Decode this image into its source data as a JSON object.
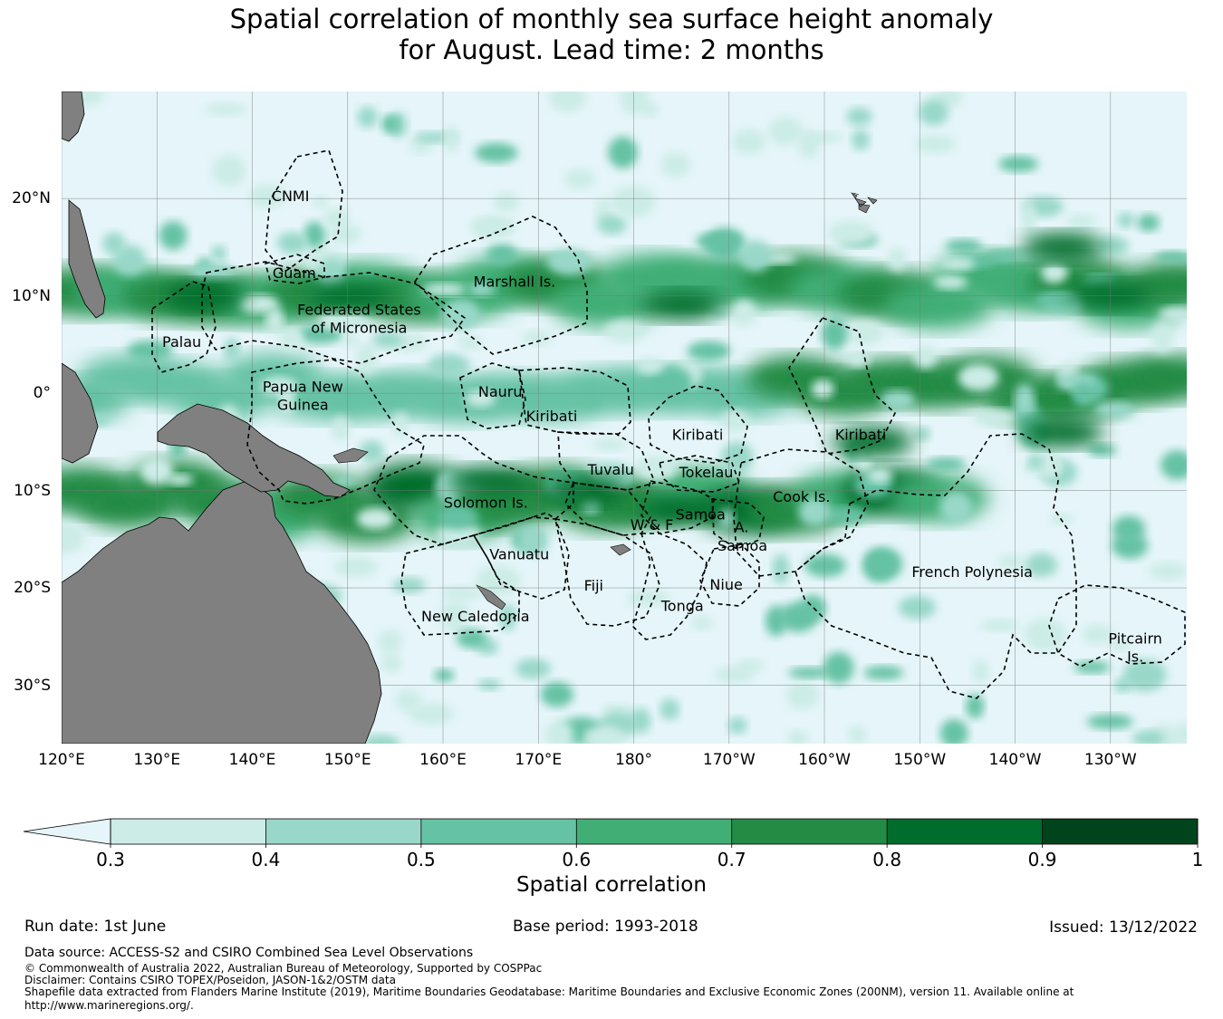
{
  "title": {
    "line1": "Spatial correlation of monthly sea surface height anomaly",
    "line2": "for August. Lead time: 2 months"
  },
  "map": {
    "extent": {
      "lon_min": 120,
      "lon_max": 238,
      "lat_min": -36,
      "lat_max": 31
    },
    "longitude_labels": [
      {
        "lon": 120,
        "text": "120°E"
      },
      {
        "lon": 130,
        "text": "130°E"
      },
      {
        "lon": 140,
        "text": "140°E"
      },
      {
        "lon": 150,
        "text": "150°E"
      },
      {
        "lon": 160,
        "text": "160°E"
      },
      {
        "lon": 170,
        "text": "170°E"
      },
      {
        "lon": 180,
        "text": "180°"
      },
      {
        "lon": 190,
        "text": "170°W"
      },
      {
        "lon": 200,
        "text": "160°W"
      },
      {
        "lon": 210,
        "text": "150°W"
      },
      {
        "lon": 220,
        "text": "140°W"
      },
      {
        "lon": 230,
        "text": "130°W"
      }
    ],
    "latitude_labels": [
      {
        "lat": 20,
        "text": "20°N"
      },
      {
        "lat": 10,
        "text": "10°N"
      },
      {
        "lat": 0,
        "text": "0°"
      },
      {
        "lat": -10,
        "text": "10°S"
      },
      {
        "lat": -20,
        "text": "20°S"
      },
      {
        "lat": -30,
        "text": "30°S"
      }
    ],
    "land_color": "#808080",
    "ocean_color": "#e5f5f9",
    "regions": [
      {
        "lines": [
          "CNMI"
        ],
        "lon": 144.0,
        "lat": 20.3
      },
      {
        "lines": [
          "Guam"
        ],
        "lon": 144.4,
        "lat": 12.4
      },
      {
        "lines": [
          "Marshall Is."
        ],
        "lon": 167.5,
        "lat": 11.5
      },
      {
        "lines": [
          "Federated States",
          "of Micronesia"
        ],
        "lon": 151.2,
        "lat": 7.7
      },
      {
        "lines": [
          "Palau"
        ],
        "lon": 132.6,
        "lat": 5.3
      },
      {
        "lines": [
          "Papua New",
          "Guinea"
        ],
        "lon": 145.3,
        "lat": -0.2
      },
      {
        "lines": [
          "Nauru"
        ],
        "lon": 166.0,
        "lat": 0.2
      },
      {
        "lines": [
          "Kiribati"
        ],
        "lon": 171.4,
        "lat": -2.3
      },
      {
        "lines": [
          "Kiribati"
        ],
        "lon": 186.7,
        "lat": -4.2
      },
      {
        "lines": [
          "Kiribati"
        ],
        "lon": 203.8,
        "lat": -4.2
      },
      {
        "lines": [
          "Tuvalu"
        ],
        "lon": 177.6,
        "lat": -7.8
      },
      {
        "lines": [
          "Tokelau"
        ],
        "lon": 187.6,
        "lat": -8.1
      },
      {
        "lines": [
          "Cook Is."
        ],
        "lon": 197.6,
        "lat": -10.6
      },
      {
        "lines": [
          "Solomon Is."
        ],
        "lon": 164.5,
        "lat": -11.2
      },
      {
        "lines": [
          "Samoa"
        ],
        "lon": 187.0,
        "lat": -12.4
      },
      {
        "lines": [
          "W & F"
        ],
        "lon": 181.9,
        "lat": -13.5
      },
      {
        "lines": [
          "A."
        ],
        "lon": 191.3,
        "lat": -13.7
      },
      {
        "lines": [
          "Samoa"
        ],
        "lon": 191.4,
        "lat": -15.6
      },
      {
        "lines": [
          "Vanuatu"
        ],
        "lon": 168.0,
        "lat": -16.5
      },
      {
        "lines": [
          "French Polynesia"
        ],
        "lon": 215.5,
        "lat": -18.3
      },
      {
        "lines": [
          "Fiji"
        ],
        "lon": 175.8,
        "lat": -19.7
      },
      {
        "lines": [
          "Niue"
        ],
        "lon": 189.7,
        "lat": -19.6
      },
      {
        "lines": [
          "Tonga"
        ],
        "lon": 185.1,
        "lat": -21.8
      },
      {
        "lines": [
          "New Caledonia"
        ],
        "lon": 163.4,
        "lat": -22.9
      },
      {
        "lines": [
          "Pitcairn",
          "Is."
        ],
        "lon": 232.6,
        "lat": -26.1
      }
    ]
  },
  "colorbar": {
    "label": "Spatial correlation",
    "levels": [
      0.3,
      0.4,
      0.5,
      0.6,
      0.7,
      0.8,
      0.9,
      1
    ],
    "tick_labels": [
      "0.3",
      "0.4",
      "0.5",
      "0.6",
      "0.7",
      "0.8",
      "0.9",
      "1"
    ],
    "under_color": "#e5f5f9",
    "colors": [
      "#ccece6",
      "#99d8c9",
      "#66c2a4",
      "#41ae76",
      "#238b45",
      "#006d2c",
      "#00441b"
    ]
  },
  "meta": {
    "run_date": "Run date: 1st June",
    "base_period": "Base period: 1993-2018",
    "issued": "Issued: 13/12/2022"
  },
  "footer": {
    "source": "Data source: ACCESS-S2 and CSIRO Combined Sea Level Observations",
    "copyright": "© Commonwealth of Australia 2022, Australian Bureau of Meteorology, Supported by COSPPac",
    "disclaimer": "Disclaimer: Contains CSIRO TOPEX/Poseidon, JASON-1&2/OSTM data",
    "shapefile": "Shapefile data extracted from Flanders Marine Institute (2019), Maritime Boundaries Geodatabase: Maritime Boundaries and Exclusive Economic Zones (200NM), version 11. Available online at",
    "url": "http://www.marineregions.org/."
  }
}
